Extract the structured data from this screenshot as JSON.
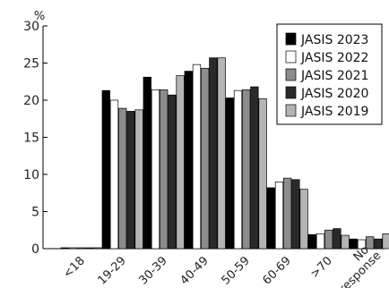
{
  "chart_data": {
    "type": "bar",
    "unit": "%",
    "categories": [
      "<18",
      "19-29",
      "30-39",
      "40-49",
      "50-59",
      "60-69",
      ">70",
      "No response"
    ],
    "series": [
      {
        "name": "JASIS 2023",
        "color": "#000000",
        "values": [
          0.1,
          21.3,
          23.1,
          23.9,
          20.3,
          8.2,
          1.9,
          1.3
        ]
      },
      {
        "name": "JASIS 2022",
        "color": "#ffffff",
        "values": [
          0.1,
          20.0,
          21.4,
          24.8,
          21.3,
          9.0,
          2.0,
          1.2
        ]
      },
      {
        "name": "JASIS 2021",
        "color": "#8c8c8c",
        "values": [
          0.1,
          18.9,
          21.4,
          24.3,
          21.4,
          9.5,
          2.5,
          1.6
        ]
      },
      {
        "name": "JASIS 2020",
        "color": "#2a2a2a",
        "values": [
          0.1,
          18.5,
          20.7,
          25.7,
          21.8,
          9.3,
          2.7,
          1.3
        ]
      },
      {
        "name": "JASIS 2019",
        "color": "#b4b4b4",
        "values": [
          0.1,
          18.7,
          23.3,
          25.7,
          20.2,
          8.0,
          1.8,
          2.0
        ]
      }
    ],
    "yticks": [
      0,
      5,
      10,
      15,
      20,
      25,
      30
    ],
    "ylim": [
      0,
      30
    ],
    "grid": false,
    "legend_position": "top-right",
    "title": "",
    "xlabel": "",
    "ylabel": ""
  }
}
